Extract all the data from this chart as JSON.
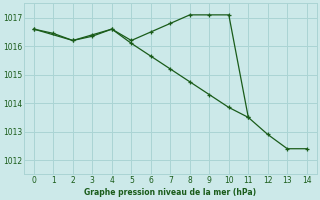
{
  "line1_x": [
    0,
    1,
    2,
    3,
    4,
    5,
    6,
    7,
    8,
    9,
    10,
    11,
    12,
    13,
    14
  ],
  "line1_y": [
    1016.6,
    1016.45,
    1016.2,
    1016.4,
    1016.6,
    1016.2,
    1016.5,
    1016.8,
    1017.1,
    1017.1,
    1017.1,
    1013.5,
    1012.9,
    1012.4,
    1012.4
  ],
  "line2_x": [
    0,
    2,
    3,
    4,
    5,
    6,
    7,
    8,
    9,
    10,
    11
  ],
  "line2_y": [
    1016.6,
    1016.2,
    1016.35,
    1016.6,
    1016.1,
    1015.65,
    1015.2,
    1014.75,
    1014.3,
    1013.85,
    1013.5
  ],
  "line_color": "#1a5c1a",
  "bg_color": "#cce9e9",
  "grid_color": "#aad4d4",
  "xlabel": "Graphe pression niveau de la mer (hPa)",
  "ylim": [
    1011.5,
    1017.5
  ],
  "xlim": [
    -0.5,
    14.5
  ],
  "yticks": [
    1012,
    1013,
    1014,
    1015,
    1016,
    1017
  ],
  "xticks": [
    0,
    1,
    2,
    3,
    4,
    5,
    6,
    7,
    8,
    9,
    10,
    11,
    12,
    13,
    14
  ],
  "figsize": [
    3.2,
    2.0
  ],
  "dpi": 100
}
